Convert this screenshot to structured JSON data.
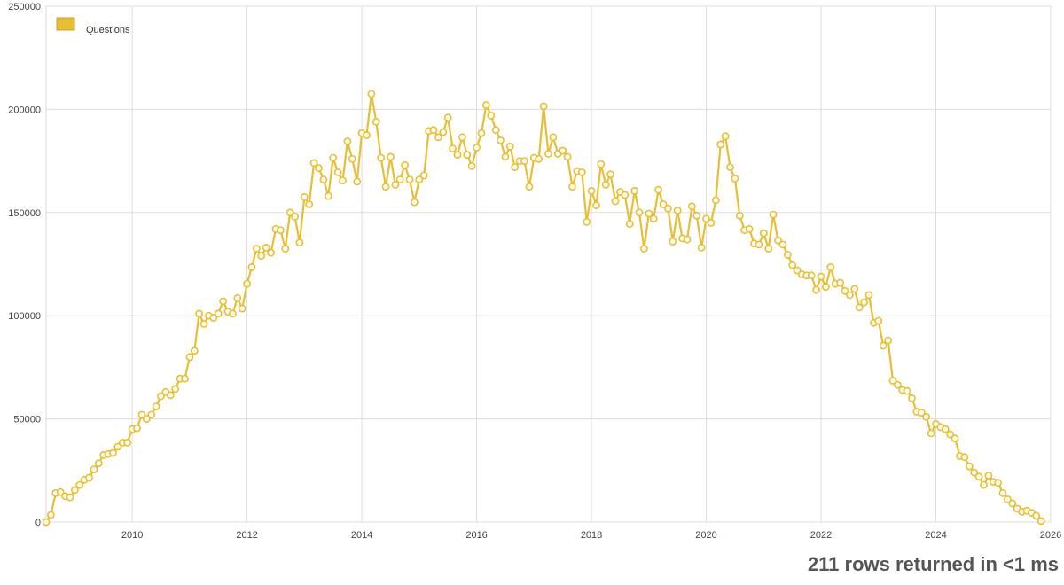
{
  "chart_data": {
    "type": "line",
    "title": "",
    "xlabel": "",
    "ylabel": "",
    "xlim": [
      2008.5,
      2026.0
    ],
    "ylim": [
      0,
      250000
    ],
    "x_ticks": [
      2010,
      2012,
      2014,
      2016,
      2018,
      2020,
      2022,
      2024,
      2026
    ],
    "x_tick_labels": [
      "2010",
      "2012",
      "2014",
      "2016",
      "2018",
      "2020",
      "2022",
      "2024",
      "2026"
    ],
    "y_ticks": [
      0,
      50000,
      100000,
      150000,
      200000,
      250000
    ],
    "y_tick_labels": [
      "0",
      "50000",
      "100000",
      "150000",
      "200000",
      "250000"
    ],
    "grid": true,
    "legend_position": "top-left",
    "series": [
      {
        "name": "Questions",
        "color": "#e8be35",
        "x_start": "2008-07",
        "interval": "monthly",
        "values": [
          0,
          3500,
          14000,
          14500,
          12500,
          12000,
          15500,
          18000,
          20500,
          21500,
          25500,
          28500,
          32500,
          33000,
          33500,
          36500,
          38500,
          38500,
          45000,
          45500,
          52000,
          50000,
          52000,
          56000,
          61000,
          63000,
          61500,
          64500,
          69500,
          69500,
          80000,
          83000,
          101000,
          96000,
          100000,
          99000,
          101000,
          107000,
          102000,
          101000,
          108500,
          103500,
          115500,
          123500,
          132500,
          129000,
          133000,
          130500,
          142000,
          141500,
          132500,
          150000,
          148000,
          135500,
          157500,
          154000,
          174000,
          171500,
          166000,
          158000,
          176500,
          169500,
          165500,
          184500,
          176000,
          165000,
          188500,
          187500,
          207500,
          194000,
          176500,
          162500,
          177000,
          163500,
          166000,
          173000,
          166000,
          155000,
          166000,
          168000,
          189500,
          190000,
          186500,
          189000,
          196000,
          181000,
          178000,
          186500,
          178000,
          172500,
          181500,
          188500,
          202000,
          197000,
          190000,
          185000,
          177000,
          182000,
          172000,
          175000,
          175000,
          162500,
          176500,
          176000,
          201500,
          178500,
          186500,
          178500,
          180000,
          177000,
          162500,
          170000,
          169500,
          145500,
          160500,
          153500,
          173500,
          163500,
          168500,
          155500,
          160000,
          158500,
          144500,
          160500,
          150000,
          132500,
          149500,
          147000,
          161000,
          154000,
          152000,
          136000,
          151000,
          137500,
          137000,
          153000,
          148500,
          133000,
          147000,
          145000,
          156000,
          183000,
          187000,
          172000,
          166500,
          148500,
          141500,
          142000,
          135000,
          134500,
          140000,
          132500,
          149000,
          136500,
          134500,
          129500,
          124500,
          122000,
          120000,
          119500,
          119500,
          112500,
          119000,
          114000,
          123500,
          115500,
          116000,
          112000,
          110000,
          113000,
          104000,
          106500,
          110000,
          96500,
          97500,
          85500,
          88000,
          68500,
          66500,
          64000,
          63500,
          60000,
          53500,
          53000,
          51000,
          43000,
          47500,
          46000,
          45000,
          42500,
          40500,
          32000,
          31500,
          27000,
          24000,
          22000,
          18000,
          22500,
          19500,
          19000,
          14000,
          11000,
          9000,
          6500,
          5000,
          5500,
          4500,
          3000,
          500
        ]
      }
    ]
  },
  "status_text": "211 rows returned in <1 ms"
}
